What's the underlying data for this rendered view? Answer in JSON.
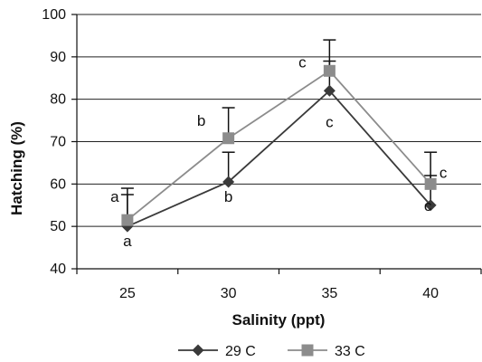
{
  "chart_data": {
    "type": "line",
    "xlabel": "Salinity (ppt)",
    "ylabel": "Hatching (%)",
    "categories": [
      "25",
      "30",
      "35",
      "40"
    ],
    "ylim": [
      40,
      100
    ],
    "yticks": [
      "40",
      "50",
      "60",
      "70",
      "80",
      "90",
      "100"
    ],
    "grid": "horizontal",
    "legend_position": "bottom",
    "series": [
      {
        "name": "29 C",
        "color": "#3a3a3a",
        "marker": "diamond",
        "values": [
          50.0,
          60.5,
          82.0,
          55.0
        ],
        "error_upper": [
          57.5,
          67.5,
          89.0,
          62.0
        ],
        "letters": [
          "a",
          "b",
          "c",
          "c"
        ]
      },
      {
        "name": "33 C",
        "color": "#8c8c8c",
        "marker": "square",
        "values": [
          51.5,
          70.8,
          86.7,
          60.0
        ],
        "error_upper": [
          59.0,
          78.0,
          94.0,
          67.5
        ],
        "letters": [
          "a",
          "b",
          "c",
          "c"
        ]
      }
    ]
  }
}
